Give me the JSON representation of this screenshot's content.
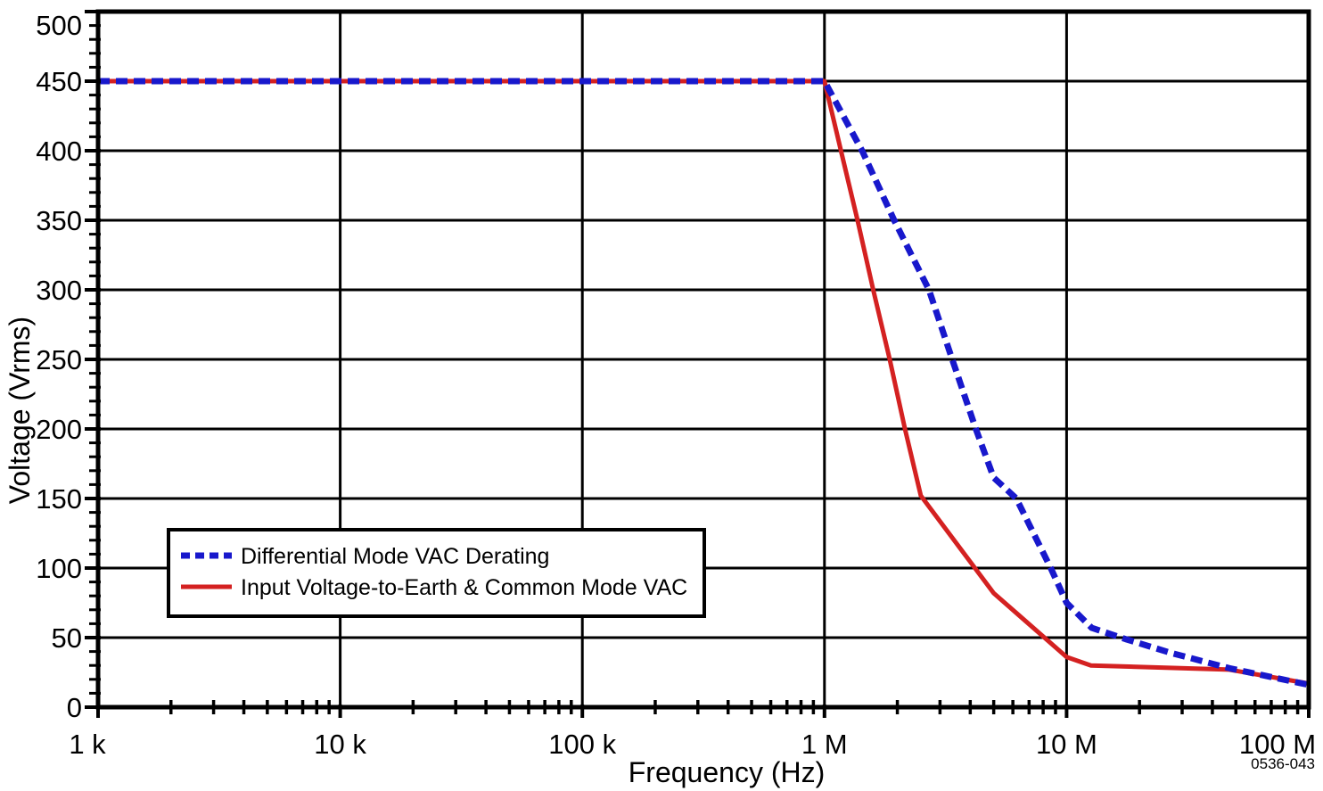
{
  "figure": {
    "figure_number": "0536-043"
  },
  "chart_data": {
    "type": "line",
    "title": "",
    "xlabel": "Frequency (Hz)",
    "ylabel": "Voltage (Vrms)",
    "x_scale": "log",
    "x_range_hz": [
      1000,
      100000000
    ],
    "x_tick_values_hz": [
      1000,
      10000,
      100000,
      1000000,
      10000000,
      100000000
    ],
    "x_tick_labels": [
      "1 k",
      "10 k",
      "100 k",
      "1 M",
      "10 M",
      "100 M"
    ],
    "ylim": [
      0,
      500
    ],
    "y_tick_step": 50,
    "y_minor_tick_step": 10,
    "grid": "major-both",
    "grid_color": "#000000",
    "legend_position": "lower-left-inside",
    "series": [
      {
        "name": "Differential Mode VAC Derating",
        "color": "#1818cc",
        "style": "dashed",
        "points_hz_vrms": [
          [
            1000,
            450
          ],
          [
            1000000,
            450
          ],
          [
            1430000,
            400
          ],
          [
            1940000,
            350
          ],
          [
            2700000,
            300
          ],
          [
            3370000,
            250
          ],
          [
            4220000,
            200
          ],
          [
            5000000,
            165
          ],
          [
            6200000,
            150
          ],
          [
            8600000,
            100
          ],
          [
            10000000,
            75
          ],
          [
            12700000,
            57
          ],
          [
            17500000,
            49
          ],
          [
            27000000,
            39
          ],
          [
            47000000,
            28
          ],
          [
            100000000,
            16
          ]
        ]
      },
      {
        "name": "Input Voltage-to-Earth & Common Mode VAC",
        "color": "#d42121",
        "style": "solid",
        "points_hz_vrms": [
          [
            1000,
            450
          ],
          [
            1000000,
            450
          ],
          [
            1170000,
            400
          ],
          [
            1370000,
            350
          ],
          [
            1590000,
            300
          ],
          [
            1860000,
            250
          ],
          [
            2150000,
            200
          ],
          [
            2500000,
            152
          ],
          [
            5000000,
            82
          ],
          [
            10000000,
            36
          ],
          [
            12600000,
            30
          ],
          [
            47000000,
            27
          ],
          [
            100000000,
            17
          ]
        ]
      }
    ]
  }
}
